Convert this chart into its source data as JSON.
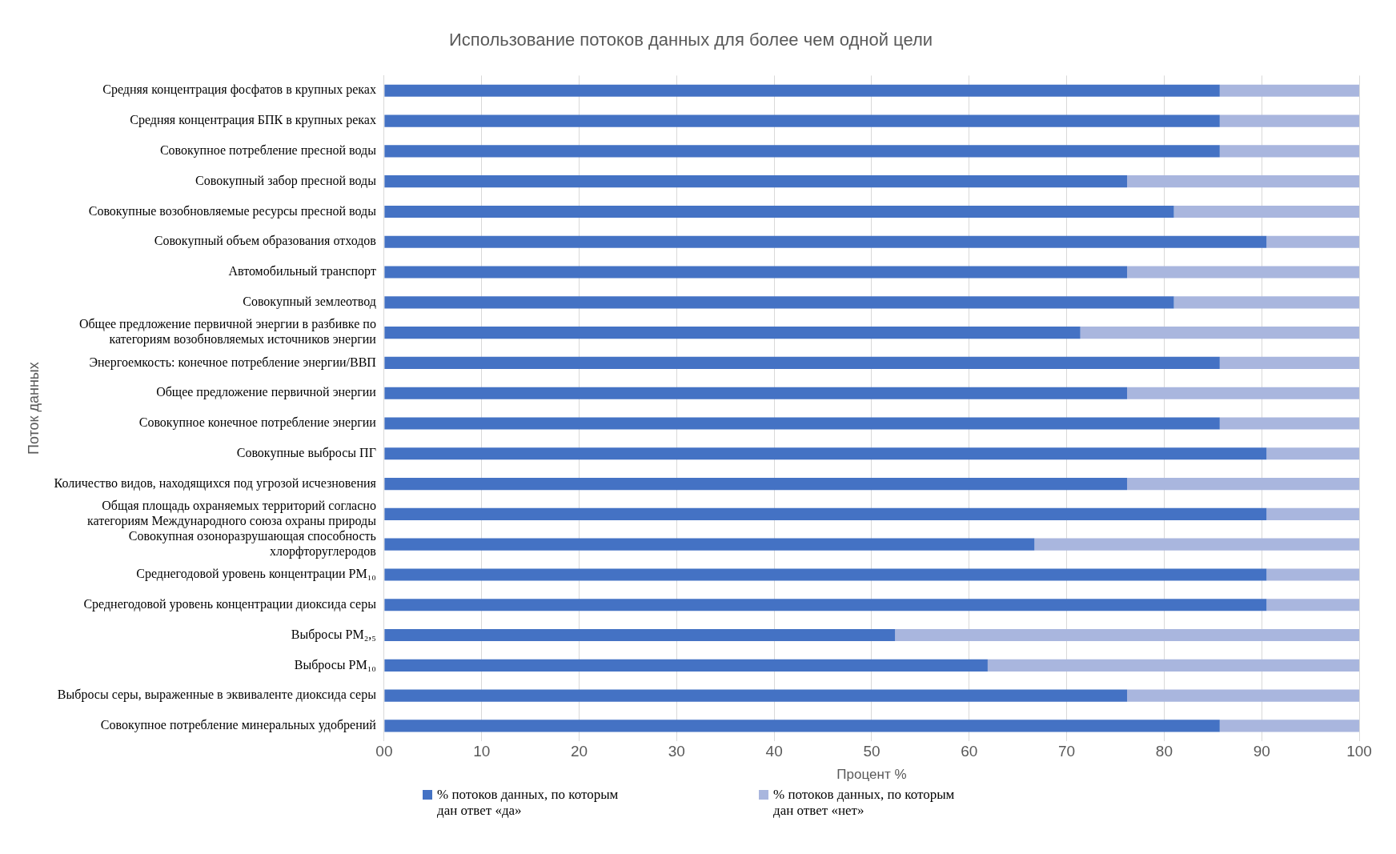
{
  "chart_data": {
    "type": "bar",
    "orientation": "horizontal",
    "stacked": true,
    "title": "Использование потоков данных для более чем одной цели",
    "xlabel": "Процент %",
    "ylabel": "Поток данных",
    "categories": [
      "Средняя концентрация фосфатов в крупных реках",
      "Средняя концентрация БПК в крупных реках",
      "Совокупное потребление пресной воды",
      "Совокупный забор пресной воды",
      "Совокупные возобновляемые ресурсы пресной воды",
      "Совокупный объем образования отходов",
      "Автомобильный транспорт",
      "Совокупный землеотвод",
      "Общее предложение первичной энергии в разбивке по категориям возобновляемых источников энергии",
      "Энергоемкость: конечное потребление энергии/ВВП",
      "Общее предложение первичной энергии",
      "Совокупное конечное потребление энергии",
      "Совокупные выбросы ПГ",
      "Количество видов, находящихся под угрозой исчезновения",
      "Общая площадь охраняемых территорий согласно категориям Международного союза охраны природы",
      "Совокупная озоноразрушающая способность хлорфторуглеродов",
      "Среднегодовой уровень концентрации PM₁₀",
      "Среднегодовой уровень концентрации диоксида серы",
      "Выбросы PM₂,₅",
      "Выбросы PM₁₀",
      "Выбросы серы, выраженные в эквиваленте диоксида серы",
      "Совокупное потребление минеральных удобрений"
    ],
    "series": [
      {
        "name": "% потоков данных, по которым дан ответ «да»",
        "color": "#4472c4",
        "values": [
          85.7,
          85.7,
          85.7,
          76.2,
          81.0,
          90.5,
          76.2,
          81.0,
          71.4,
          85.7,
          76.2,
          85.7,
          90.5,
          76.2,
          90.5,
          66.7,
          90.5,
          90.5,
          52.4,
          61.9,
          76.2,
          85.7
        ]
      },
      {
        "name": "% потоков данных, по которым дан ответ «нет»",
        "color": "#a9b6de",
        "values": [
          14.3,
          14.3,
          14.3,
          23.8,
          19.0,
          9.5,
          23.8,
          19.0,
          28.6,
          14.3,
          23.8,
          14.3,
          9.5,
          23.8,
          9.5,
          33.3,
          9.5,
          9.5,
          47.6,
          38.1,
          23.8,
          14.3
        ]
      }
    ],
    "xlim": [
      0,
      100
    ],
    "xticks": [
      {
        "value": 0,
        "label": "00"
      },
      10,
      20,
      30,
      40,
      50,
      60,
      70,
      80,
      90,
      100
    ],
    "grid": "x",
    "legend": "bottom"
  }
}
